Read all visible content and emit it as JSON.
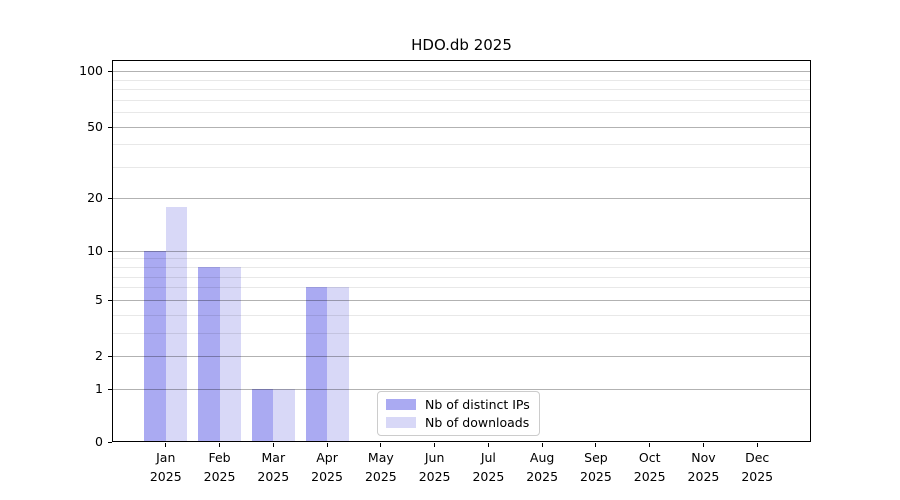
{
  "chart_data": {
    "type": "bar",
    "title": "HDO.db 2025",
    "categories": [
      "Jan",
      "Feb",
      "Mar",
      "Apr",
      "May",
      "Jun",
      "Jul",
      "Aug",
      "Sep",
      "Oct",
      "Nov",
      "Dec"
    ],
    "category_year": "2025",
    "series": [
      {
        "name": "Nb of distinct IPs",
        "color": "#aaaaf2",
        "values": [
          10,
          8,
          1,
          6,
          0,
          0,
          0,
          0,
          0,
          0,
          0,
          0
        ]
      },
      {
        "name": "Nb of downloads",
        "color": "#d8d8f7",
        "values": [
          18,
          8,
          1,
          6,
          0,
          0,
          0,
          0,
          0,
          0,
          0,
          0
        ]
      }
    ],
    "xlabel": "",
    "ylabel": "",
    "y_scale": "log1p",
    "ylim": [
      0,
      115
    ],
    "y_major_ticks": [
      0,
      1,
      2,
      5,
      10,
      20,
      50,
      100
    ],
    "y_minor_ticks": [
      3,
      4,
      6,
      7,
      8,
      9,
      30,
      40,
      60,
      70,
      80,
      90
    ],
    "grid": true,
    "legend_position": "inside-bottom-center",
    "colors": {
      "major_grid": "rgba(0,0,0,0.30)",
      "minor_grid": "rgba(0,0,0,0.09)",
      "axis": "#000000",
      "legend_border": "#cccccc",
      "background": "#ffffff"
    }
  }
}
